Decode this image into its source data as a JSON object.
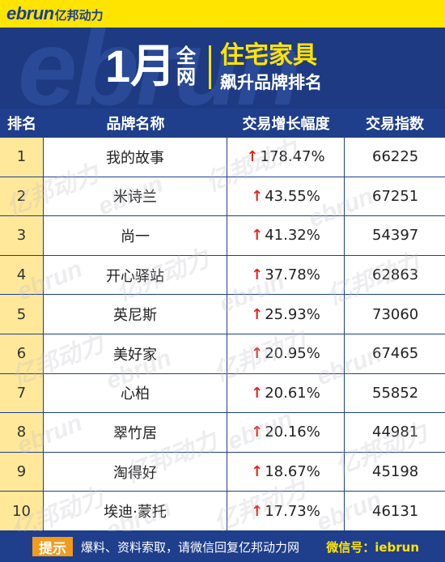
{
  "brand": {
    "en": "ebrun",
    "cn": "亿邦动力"
  },
  "header": {
    "watermark": "ebrun",
    "month": "1月",
    "scope": "全网",
    "title": "住宅家具",
    "subtitle": "飙升品牌排名"
  },
  "table": {
    "columns": [
      "排名",
      "品牌名称",
      "交易增长幅度",
      "交易指数"
    ],
    "rows": [
      {
        "rank": "1",
        "name": "我的故事",
        "growth": "178.47%",
        "index": "66225"
      },
      {
        "rank": "2",
        "name": "米诗兰",
        "growth": "43.55%",
        "index": "67251"
      },
      {
        "rank": "3",
        "name": "尚一",
        "growth": "41.32%",
        "index": "54397"
      },
      {
        "rank": "4",
        "name": "开心驿站",
        "growth": "37.78%",
        "index": "62863"
      },
      {
        "rank": "5",
        "name": "英尼斯",
        "growth": "25.93%",
        "index": "73060"
      },
      {
        "rank": "6",
        "name": "美好家",
        "growth": "20.95%",
        "index": "67465"
      },
      {
        "rank": "7",
        "name": "心柏",
        "growth": "20.61%",
        "index": "55852"
      },
      {
        "rank": "8",
        "name": "翠竹居",
        "growth": "20.16%",
        "index": "44981"
      },
      {
        "rank": "9",
        "name": "淘得好",
        "growth": "18.67%",
        "index": "45198"
      },
      {
        "rank": "10",
        "name": "埃迪·蒙托",
        "growth": "17.73%",
        "index": "46131"
      }
    ],
    "arrow_symbol": "↑"
  },
  "watermarks": [
    "亿邦动力",
    "ebrun"
  ],
  "footer": {
    "tip": "提示",
    "text": "爆料、资料索取，请微信回复亿邦动力网",
    "wechat": "微信号：iebrun"
  },
  "colors": {
    "navy": "#1f3e8c",
    "yellow": "#ffe400",
    "rank_bg": "#ffe89a",
    "arrow": "#e0261c",
    "tip": "#f29a1c"
  }
}
